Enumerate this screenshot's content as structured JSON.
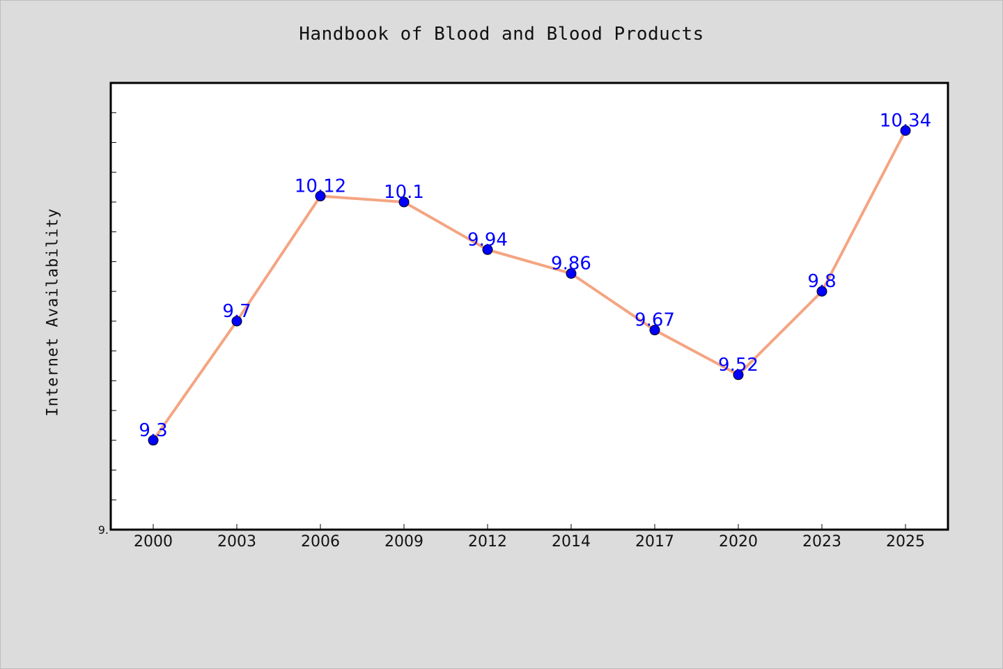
{
  "chart_data": {
    "type": "line",
    "title": "Handbook of Blood and Blood Products",
    "xlabel": "",
    "ylabel": "Internet Availability",
    "categories": [
      "2000",
      "2003",
      "2006",
      "2009",
      "2012",
      "2014",
      "2017",
      "2020",
      "2023",
      "2025"
    ],
    "series": [
      {
        "values": [
          9.3,
          9.7,
          10.12,
          10.1,
          9.94,
          9.86,
          9.67,
          9.52,
          9.8,
          10.34
        ],
        "labels": [
          "9.3",
          "9.7",
          "10.12",
          "10.1",
          "9.94",
          "9.86",
          "9.67",
          "9.52",
          "9.8",
          "10.34"
        ],
        "line_color": "#f4a582",
        "marker_color": "#0000ff"
      }
    ],
    "y_tick_labels": [
      "9."
    ],
    "ylim": [
      9.0,
      10.5
    ],
    "grid": false,
    "background_color": "#dcdcdc",
    "plot_background_color": "#ffffff",
    "label_color": "#0000ff"
  }
}
